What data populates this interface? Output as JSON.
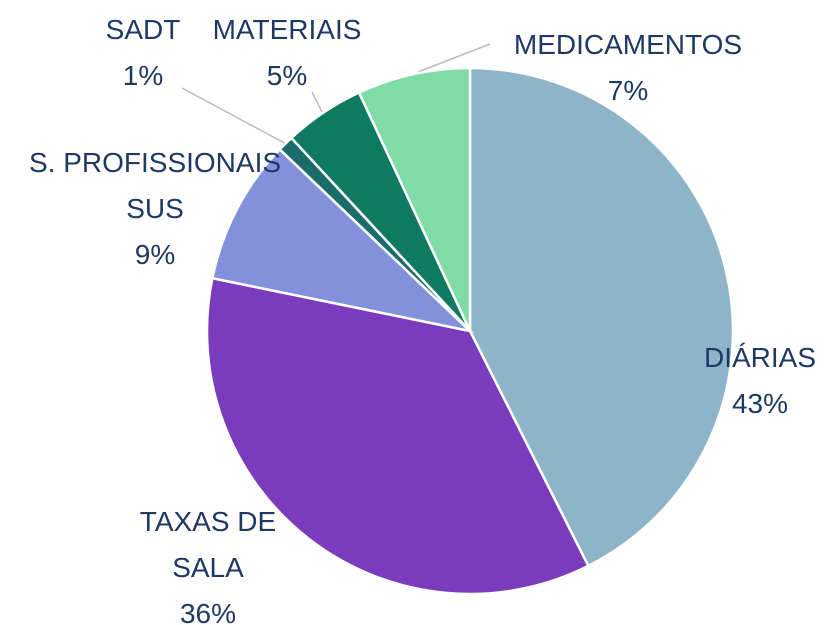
{
  "chart_data": {
    "type": "pie",
    "categories": [
      "DIÁRIAS",
      "TAXAS DE SALA",
      "S. PROFISSIONAIS SUS",
      "SADT",
      "MATERIAIS",
      "MEDICAMENTOS"
    ],
    "values": [
      43,
      36,
      9,
      1,
      5,
      7
    ],
    "value_labels": [
      "43%",
      "36%",
      "9%",
      "1%",
      "5%",
      "7%"
    ],
    "colors": [
      "#8db4c8",
      "#7a3bbd",
      "#8391dc",
      "#1b6b6c",
      "#0e7a60",
      "#80dca7"
    ]
  }
}
